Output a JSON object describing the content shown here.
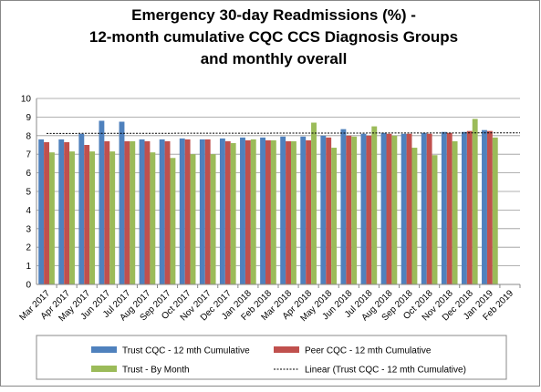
{
  "chart_data": {
    "type": "bar",
    "title": [
      "Emergency 30-day Readmissions (%)  -",
      "12-month cumulative CQC CCS Diagnosis Groups",
      "and monthly overall"
    ],
    "categories": [
      "Mar 2017",
      "Apr 2017",
      "May 2017",
      "Jun 2017",
      "Jul 2017",
      "Aug 2017",
      "Sep 2017",
      "Oct 2017",
      "Nov 2017",
      "Dec 2017",
      "Jan 2018",
      "Feb 2018",
      "Mar 2018",
      "Apr 2018",
      "May 2018",
      "Jun 2018",
      "Jul 2018",
      "Aug 2018",
      "Sep 2018",
      "Oct 2018",
      "Nov 2018",
      "Dec 2018",
      "Jan 2019",
      "Feb 2019"
    ],
    "series": [
      {
        "name": "Trust CQC - 12 mth Cumulative",
        "color": "#4f81bd",
        "values": [
          7.8,
          7.8,
          8.1,
          8.8,
          8.75,
          7.8,
          7.8,
          7.85,
          7.8,
          7.85,
          7.9,
          7.9,
          7.95,
          7.95,
          8.0,
          8.35,
          8.1,
          8.15,
          8.1,
          8.15,
          8.2,
          8.2,
          8.3,
          null
        ]
      },
      {
        "name": "Peer CQC - 12 mth Cumulative",
        "color": "#c0504d",
        "values": [
          7.65,
          7.65,
          7.5,
          7.7,
          7.7,
          7.7,
          7.7,
          7.8,
          7.8,
          7.7,
          7.75,
          7.75,
          7.7,
          7.75,
          7.9,
          8.0,
          8.0,
          8.1,
          8.1,
          8.1,
          8.15,
          8.25,
          8.25,
          null
        ]
      },
      {
        "name": "Trust - By Month",
        "color": "#9bbb59",
        "values": [
          7.1,
          7.15,
          7.15,
          7.15,
          7.7,
          7.1,
          6.8,
          7.0,
          7.0,
          7.6,
          7.8,
          7.75,
          7.7,
          8.7,
          7.35,
          7.95,
          8.5,
          8.0,
          7.35,
          6.95,
          7.7,
          8.9,
          7.9,
          null
        ]
      }
    ],
    "trendline": {
      "name": "Linear (Trust CQC - 12 mth Cumulative)",
      "color": "#000000",
      "values": [
        8.12,
        8.15
      ]
    },
    "ylim": [
      0,
      10
    ],
    "yticks": [
      0,
      1,
      2,
      3,
      4,
      5,
      6,
      7,
      8,
      9,
      10
    ],
    "grid": true
  }
}
